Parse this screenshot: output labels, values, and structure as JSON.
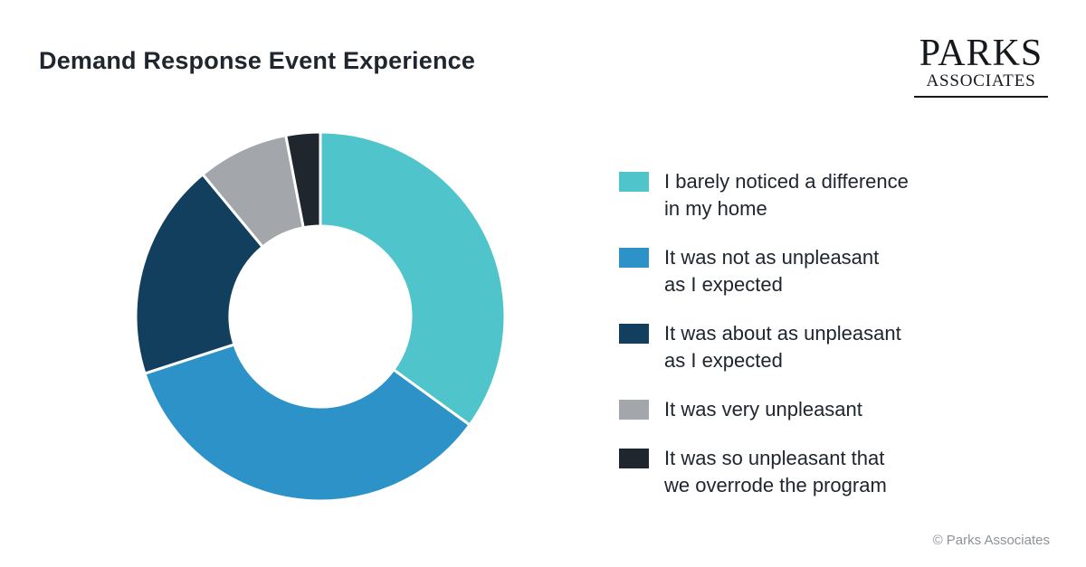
{
  "header": {
    "logo": {
      "line1": "PARKS",
      "line2": "ASSOCIATES"
    }
  },
  "chart_data": {
    "type": "pie",
    "subtype": "donut",
    "title": "Demand Response Event Experience",
    "categories": [
      "I barely noticed a difference in my home",
      "It was not as unpleasant as I expected",
      "It was about as unpleasant as I expected",
      "It was very unpleasant",
      "It was so unpleasant that we overrode the program"
    ],
    "values": [
      35,
      35,
      19,
      8,
      3
    ],
    "unit": "percent",
    "colors": [
      "#4fc4cb",
      "#2d92c8",
      "#133f5f",
      "#a3a7ab",
      "#20262d"
    ],
    "start_angle_deg": 0,
    "direction": "clockwise",
    "inner_radius_ratio": 0.49,
    "legend_position": "right"
  },
  "legend": {
    "items": [
      {
        "lines": [
          "I barely noticed a difference",
          "in my home"
        ]
      },
      {
        "lines": [
          "It was not as unpleasant",
          "as I expected"
        ]
      },
      {
        "lines": [
          "It was about as unpleasant",
          "as I expected"
        ]
      },
      {
        "lines": [
          "It was very unpleasant"
        ]
      },
      {
        "lines": [
          "It was so unpleasant that",
          "we overrode the program"
        ]
      }
    ]
  },
  "footer": {
    "copyright": "© Parks Associates"
  }
}
